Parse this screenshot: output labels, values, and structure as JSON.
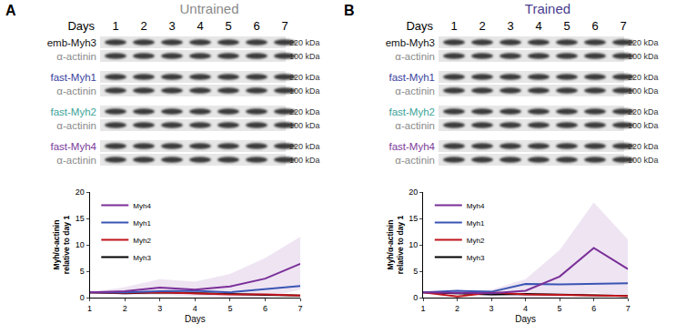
{
  "panels": [
    {
      "letter": "A",
      "title": "Untrained",
      "title_color": "#8a8a8a",
      "blot": {
        "days_label": "Days",
        "days": [
          1,
          2,
          3,
          4,
          5,
          6,
          7
        ],
        "rows": [
          {
            "label": "emb-Myh3",
            "color": "#111111",
            "size": "220 kDa"
          },
          {
            "label": "α-actinin",
            "color": "#8a8a8a",
            "size": "100 kDa"
          },
          {
            "label": "fast-Myh1",
            "color": "#3a3f9e",
            "size": "220 kDa"
          },
          {
            "label": "α-actinin",
            "color": "#8a8a8a",
            "size": "100 kDa"
          },
          {
            "label": "fast-Myh2",
            "color": "#3aa39a",
            "size": "220 kDa"
          },
          {
            "label": "α-actinin",
            "color": "#8a8a8a",
            "size": "100 kDa"
          },
          {
            "label": "fast-Myh4",
            "color": "#7b3a9a",
            "size": "220 kDa"
          },
          {
            "label": "α-actinin",
            "color": "#8a8a8a",
            "size": "100 kDa"
          }
        ]
      }
    },
    {
      "letter": "B",
      "title": "Trained",
      "title_color": "#4a3d8f",
      "blot": {
        "days_label": "Days",
        "days": [
          1,
          2,
          3,
          4,
          5,
          6,
          7
        ],
        "rows": [
          {
            "label": "emb-Myh3",
            "color": "#111111",
            "size": "220 kDa"
          },
          {
            "label": "α-actinin",
            "color": "#8a8a8a",
            "size": "100 kDa"
          },
          {
            "label": "fast-Myh1",
            "color": "#3a3f9e",
            "size": "220 kDa"
          },
          {
            "label": "α-actinin",
            "color": "#8a8a8a",
            "size": "100 kDa"
          },
          {
            "label": "fast-Myh2",
            "color": "#3aa39a",
            "size": "220 kDa"
          },
          {
            "label": "α-actinin",
            "color": "#8a8a8a",
            "size": "100 kDa"
          },
          {
            "label": "fast-Myh4",
            "color": "#7b3a9a",
            "size": "220 kDa"
          },
          {
            "label": "α-actinin",
            "color": "#8a8a8a",
            "size": "100 kDa"
          }
        ]
      }
    }
  ],
  "chart_data": [
    {
      "type": "line",
      "x": [
        1,
        2,
        3,
        4,
        5,
        6,
        7
      ],
      "xlim": [
        1,
        7
      ],
      "xticks": [
        1,
        2,
        3,
        4,
        5,
        6,
        7
      ],
      "ylim": [
        0,
        20
      ],
      "yticks": [
        0,
        5,
        10,
        15,
        20
      ],
      "x_label": "Days",
      "y_label": "Myh/α-actinin relative to day 1",
      "legend": "upper left",
      "grid": false,
      "series": [
        {
          "name": "Myh3",
          "color": "#000000",
          "values": [
            1,
            0.8,
            1.0,
            0.9,
            0.7,
            0.5,
            0.4
          ]
        },
        {
          "name": "Myh2",
          "color": "#c0141c",
          "values": [
            1,
            0.9,
            1.0,
            0.8,
            0.6,
            0.6,
            0.4
          ]
        },
        {
          "name": "Myh1",
          "color": "#3a55b4",
          "values": [
            1,
            1.0,
            1.2,
            1.3,
            1.0,
            1.6,
            2.2
          ]
        },
        {
          "name": "Myh4",
          "color": "#7a2f99",
          "values": [
            1,
            1.2,
            1.9,
            1.5,
            2.1,
            3.6,
            6.4
          ],
          "upper": [
            1,
            2,
            3.5,
            3,
            4.5,
            7.5,
            11.5
          ],
          "lower": [
            1,
            0.5,
            0.5,
            0.3,
            0,
            0,
            1.5
          ]
        }
      ]
    },
    {
      "type": "line",
      "x": [
        1,
        2,
        3,
        4,
        5,
        6,
        7
      ],
      "xlim": [
        1,
        7
      ],
      "xticks": [
        1,
        2,
        3,
        4,
        5,
        6,
        7
      ],
      "ylim": [
        0,
        20
      ],
      "yticks": [
        0,
        5,
        10,
        15,
        20
      ],
      "x_label": "Days",
      "y_label": "Myh/α-actinin relative to day 1",
      "legend": "upper left",
      "grid": false,
      "series": [
        {
          "name": "Myh3",
          "color": "#000000",
          "values": [
            1,
            0.8,
            0.6,
            0.7,
            0.6,
            0.4,
            0.3
          ]
        },
        {
          "name": "Myh2",
          "color": "#c0141c",
          "values": [
            1,
            0.2,
            1.0,
            0.6,
            0.5,
            0.4,
            0.3
          ]
        },
        {
          "name": "Myh1",
          "color": "#3a55b4",
          "values": [
            1,
            1.3,
            1.1,
            2.6,
            2.5,
            2.6,
            2.7
          ]
        },
        {
          "name": "Myh4",
          "color": "#7a2f99",
          "values": [
            1,
            0.9,
            0.8,
            1.3,
            4.0,
            9.4,
            5.4
          ],
          "upper": [
            1,
            1.3,
            1.5,
            3.5,
            9,
            18,
            11
          ],
          "lower": [
            1,
            0.5,
            0.2,
            0,
            0,
            1,
            0
          ]
        }
      ]
    }
  ]
}
